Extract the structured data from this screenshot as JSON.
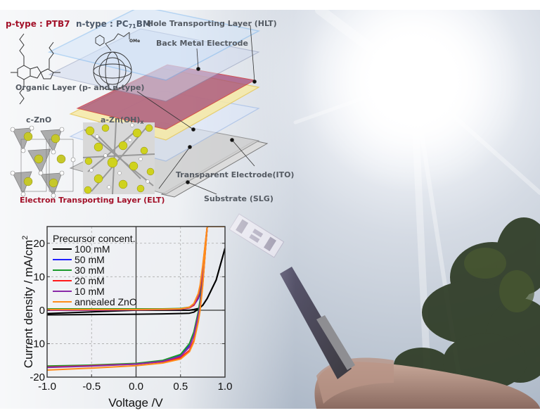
{
  "diagram": {
    "materials": {
      "p_type": {
        "prefix": "p-type : ",
        "name": "PTB7"
      },
      "n_type": {
        "prefix": "n-type : PC",
        "sub": "71",
        "suffix": "BM"
      },
      "ome_label": "OMe",
      "c_zno": "c-ZnO",
      "a_znoh": {
        "base": "a-Zn(OH)",
        "sub": "x"
      }
    },
    "layers": [
      {
        "id": "hlt",
        "label": "Hole Transporting Layer (HLT)",
        "color": "#7fbcf2"
      },
      {
        "id": "back-metal",
        "label": "Back Metal Electrode",
        "color": "#9aa8c8"
      },
      {
        "id": "organic",
        "label": "Organic Layer (p- and n-type)",
        "color": "#b2456a"
      },
      {
        "id": "elt",
        "label": "Electron Transporting Layer (ELT)",
        "color": "#f2dc78"
      },
      {
        "id": "ito",
        "label": "Transparent Electrode(ITO)",
        "color": "#8fb0e6"
      },
      {
        "id": "substrate",
        "label": "Substrate (SLG)",
        "color": "#c9c9c9"
      }
    ]
  },
  "chart_data": {
    "type": "line",
    "title": "",
    "xlabel": "Voltage /V",
    "ylabel": "Current density / mA/cm",
    "ylabel_superscript": "2",
    "xlim": [
      -1.0,
      1.0
    ],
    "ylim": [
      -20,
      25
    ],
    "xticks": [
      "-1.0",
      "-0.5",
      "0.0",
      "0.5",
      "1.0"
    ],
    "yticks": [
      "-20",
      "-10",
      "0",
      "10",
      "20"
    ],
    "grid": true,
    "legend_title": "Precursor concent.",
    "legend_position": "upper left",
    "x": [
      -1.0,
      -0.5,
      0.0,
      0.3,
      0.5,
      0.6,
      0.65,
      0.7,
      0.72,
      0.75,
      0.8,
      0.9,
      1.0
    ],
    "series": [
      {
        "name": "100 mM",
        "color": "#000000",
        "dark": [
          -1.0,
          -0.5,
          0.0,
          0.0,
          0.0,
          0.0,
          0.2,
          0.5,
          0.8,
          1.5,
          3.5,
          9.0,
          18.5
        ],
        "light": [
          -1.4,
          -1.3,
          -1.2,
          -1.1,
          -1.0,
          -0.9,
          -0.6,
          0.3,
          0.8,
          1.5,
          3.5,
          9.0,
          18.5
        ]
      },
      {
        "name": "50 mM",
        "color": "#1f1fff",
        "dark": [
          0.1,
          0.1,
          0.2,
          0.3,
          0.4,
          0.8,
          1.5,
          3.5,
          5.0,
          9.0,
          25,
          25,
          25
        ],
        "light": [
          -16.9,
          -16.5,
          -16.0,
          -15.2,
          -13.5,
          -10.5,
          -7.0,
          -1.0,
          2.0,
          8.0,
          25,
          25,
          25
        ]
      },
      {
        "name": "30 mM",
        "color": "#1a9a2a",
        "dark": [
          0.4,
          0.4,
          0.4,
          0.4,
          0.5,
          0.9,
          1.8,
          4.0,
          6.0,
          11.0,
          25,
          25,
          25
        ],
        "light": [
          -16.7,
          -16.4,
          -15.9,
          -15.0,
          -13.2,
          -10.0,
          -6.5,
          -0.5,
          3.0,
          10.0,
          25,
          25,
          25
        ]
      },
      {
        "name": "20 mM",
        "color": "#ff1a1a",
        "dark": [
          0.0,
          0.0,
          0.1,
          0.2,
          0.3,
          0.7,
          1.5,
          4.0,
          6.5,
          12.0,
          25,
          25,
          25
        ],
        "light": [
          -17.0,
          -16.6,
          -16.1,
          -15.4,
          -14.2,
          -12.0,
          -9.0,
          -3.0,
          0.5,
          8.0,
          25,
          25,
          25
        ]
      },
      {
        "name": "10 mM",
        "color": "#8a2aa8",
        "dark": [
          0.0,
          0.0,
          0.1,
          0.2,
          0.3,
          0.8,
          1.8,
          4.5,
          7.0,
          13.0,
          25,
          25,
          25
        ],
        "light": [
          -17.1,
          -16.7,
          -16.1,
          -15.3,
          -13.8,
          -11.0,
          -7.5,
          -1.5,
          1.5,
          9.0,
          25,
          25,
          25
        ]
      },
      {
        "name": "annealed ZnO",
        "color": "#ff8c1a",
        "dark": [
          0.2,
          0.2,
          0.2,
          0.3,
          0.4,
          0.9,
          2.0,
          5.0,
          7.5,
          13.5,
          25,
          25,
          25
        ],
        "light": [
          -17.9,
          -17.3,
          -16.6,
          -15.8,
          -14.6,
          -12.4,
          -9.5,
          -3.5,
          0.0,
          7.5,
          25,
          25,
          25
        ]
      }
    ]
  },
  "photo": {
    "description": "Semi-transparent solar cell device held with tweezers against a sunny sky with trees"
  }
}
